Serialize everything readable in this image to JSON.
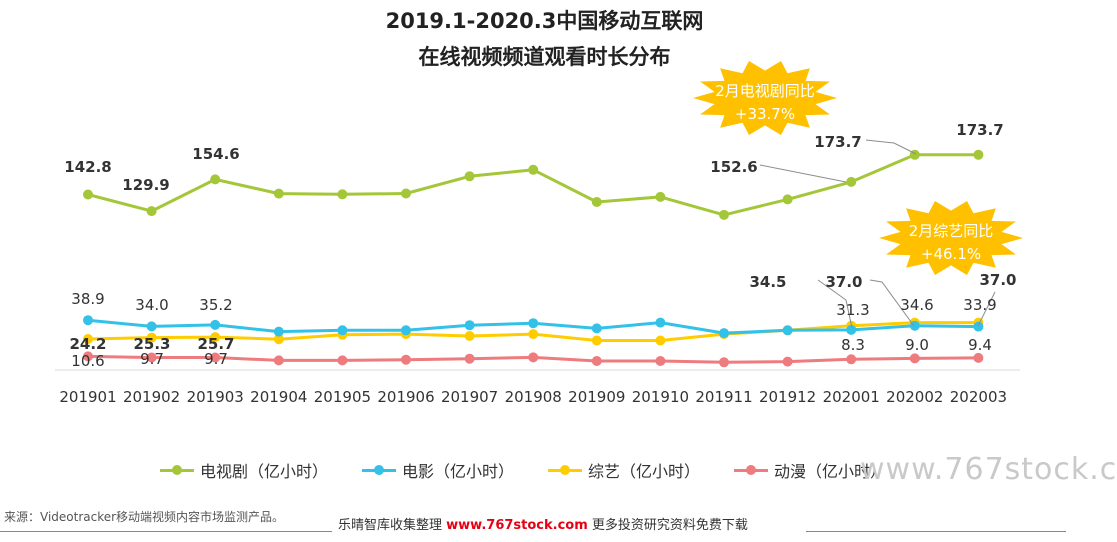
{
  "title": {
    "line1": "2019.1-2020.3中国移动互联网",
    "line2": "在线视频频道观看时长分布"
  },
  "chart_data": {
    "type": "line",
    "title": "2019.1-2020.3中国移动互联网 在线视频频道观看时长分布",
    "categories": [
      "201901",
      "201902",
      "201903",
      "201904",
      "201905",
      "201906",
      "201907",
      "201908",
      "201909",
      "201910",
      "201911",
      "201912",
      "202001",
      "202002",
      "202003"
    ],
    "series": [
      {
        "name": "电视剧（亿小时）",
        "color": "#a4c639",
        "values": [
          142.8,
          129.9,
          154.6,
          143.5,
          143.0,
          143.6,
          157.0,
          162.0,
          137.0,
          141.0,
          127.0,
          139.0,
          152.6,
          173.7,
          173.7
        ]
      },
      {
        "name": "电影（亿小时）",
        "color": "#33c1e8",
        "values": [
          38.9,
          34.0,
          35.2,
          30.0,
          31.0,
          31.0,
          35.0,
          36.5,
          32.5,
          37.0,
          28.8,
          31.0,
          31.3,
          34.6,
          33.9
        ]
      },
      {
        "name": "综艺（亿小时）",
        "color": "#ffcc00",
        "values": [
          24.2,
          25.3,
          25.7,
          24.0,
          27.5,
          28.0,
          26.5,
          28.0,
          23.0,
          23.0,
          28.0,
          31.0,
          34.5,
          37.0,
          37.0
        ]
      },
      {
        "name": "动漫（亿小时）",
        "color": "#ee7b7e",
        "values": [
          10.6,
          9.7,
          9.7,
          7.5,
          7.5,
          8.0,
          8.8,
          9.8,
          7.0,
          7.0,
          6.0,
          6.5,
          8.3,
          9.0,
          9.4
        ]
      }
    ],
    "data_labels": {
      "tv": [
        "142.8",
        "129.9",
        "154.6",
        "152.6",
        "173.7",
        "173.7"
      ],
      "movie": [
        "38.9",
        "34.0",
        "35.2",
        "31.3",
        "34.6",
        "33.9"
      ],
      "variety": [
        "24.2",
        "25.3",
        "25.7",
        "34.5",
        "37.0",
        "37.0"
      ],
      "anime": [
        "10.6",
        "9.7",
        "9.7",
        "8.3",
        "9.0",
        "9.4"
      ]
    },
    "grid": false
  },
  "callouts": {
    "tv_line1": "2月电视剧同比",
    "tv_line2": "+33.7%",
    "variety_line1": "2月综艺同比",
    "variety_line2": "+46.1%"
  },
  "legend": {
    "tv": "电视剧（亿小时）",
    "movie": "电影（亿小时）",
    "variety": "综艺（亿小时）",
    "anime": "动漫（亿小时）"
  },
  "watermark": "www.767stock.c",
  "source": "来源：Videotracker移动端视频内容市场监测产品。",
  "footer": {
    "prefix": "乐晴智库收集整理 ",
    "site": "www.767stock.com",
    "suffix": " 更多投资研究资料免费下载"
  }
}
